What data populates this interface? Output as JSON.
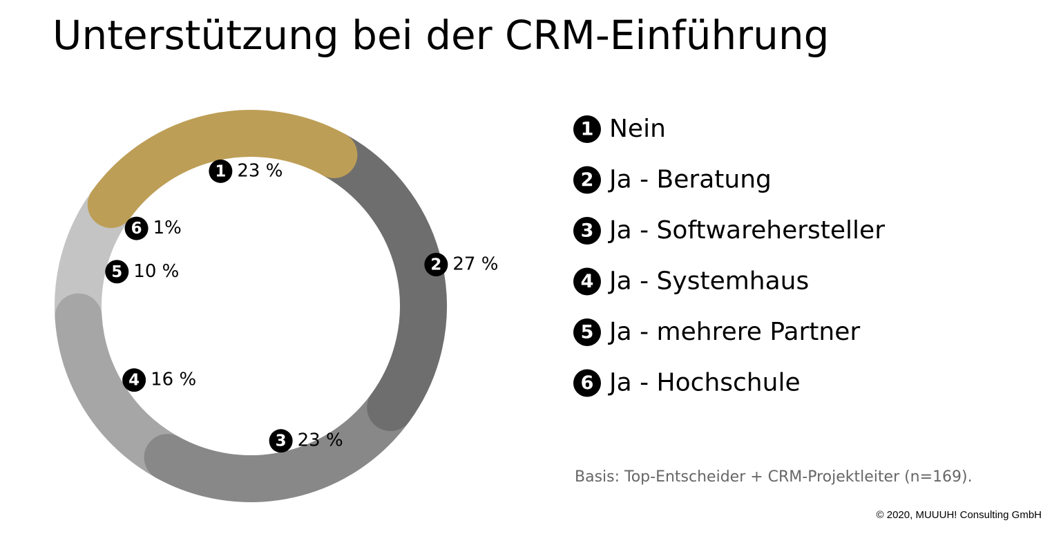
{
  "chart_data": {
    "type": "donut",
    "title": "Unterstützung bei der CRM-Einführung",
    "badges": [
      "1",
      "2",
      "3",
      "4",
      "5",
      "6"
    ],
    "categories": [
      "Nein",
      "Ja - Beratung",
      "Ja - Softwarehersteller",
      "Ja - Systemhaus",
      "Ja - mehrere Partner",
      "Ja - Hochschule"
    ],
    "values": [
      23,
      27,
      23,
      16,
      10,
      1
    ],
    "value_labels": [
      "23 %",
      "27 %",
      "23 %",
      "16 %",
      "10 %",
      "1%"
    ],
    "colors": [
      "#bd9e56",
      "#6e6e6e",
      "#888888",
      "#a6a6a6",
      "#c4c4c4",
      "#e2e2e2"
    ],
    "note": "Basis: Top-Entscheider + CRM-Projektleiter  (n=169).",
    "copyright": "© 2020, MUUUH! Consulting GmbH"
  }
}
